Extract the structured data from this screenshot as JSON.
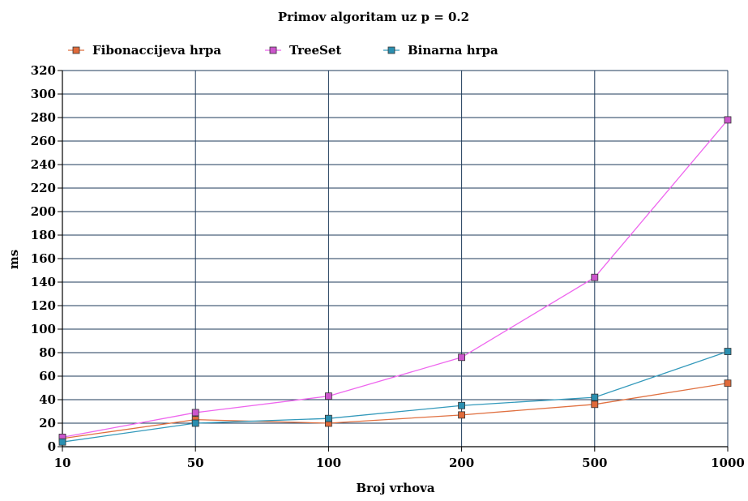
{
  "chart_data": {
    "type": "line",
    "title": "Primov algoritam uz p = 0.2",
    "xlabel": "Broj vrhova",
    "ylabel": "ms",
    "categories": [
      "10",
      "50",
      "100",
      "200",
      "500",
      "1000"
    ],
    "ylim": [
      0,
      320
    ],
    "yticks": [
      "0",
      "20",
      "40",
      "60",
      "80",
      "100",
      "120",
      "140",
      "160",
      "180",
      "200",
      "220",
      "240",
      "260",
      "280",
      "300",
      "320"
    ],
    "grid": true,
    "legend_position": "top",
    "series": [
      {
        "name": "Fibonaccijeva hrpa",
        "color": "#e07040",
        "marker_fill": "#e06a3a",
        "values": [
          7,
          23,
          20,
          27,
          36,
          54
        ]
      },
      {
        "name": "TreeSet",
        "color": "#ee66ee",
        "marker_fill": "#cc55cc",
        "values": [
          8,
          29,
          43,
          76,
          144,
          278
        ]
      },
      {
        "name": "Binarna hrpa",
        "color": "#3399bb",
        "marker_fill": "#2a8fb0",
        "values": [
          4,
          20,
          24,
          35,
          42,
          81
        ]
      }
    ]
  }
}
